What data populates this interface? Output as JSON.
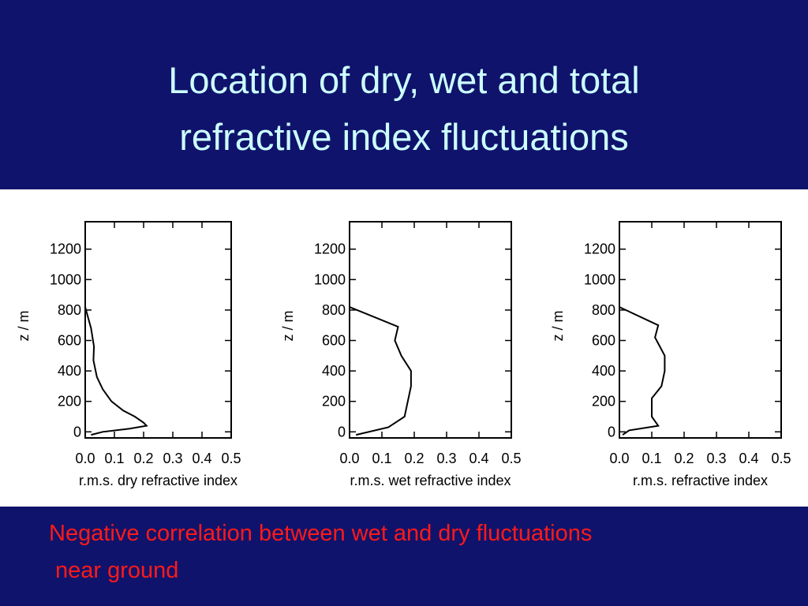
{
  "slide": {
    "title": [
      "Location of dry, wet and total",
      "refractive index fluctuations"
    ],
    "caption": [
      "Negative correlation between wet and dry fluctuations",
      "near ground"
    ]
  },
  "chart_data": [
    {
      "type": "line",
      "x_label": "r.m.s. dry refractive index",
      "y_label": "z / m",
      "color": "#000000",
      "x": [
        0,
        0.02,
        0.03,
        0.028,
        0.04,
        0.06,
        0.09,
        0.13,
        0.17,
        0.2,
        0.21,
        0.15,
        0.06,
        0.02
      ],
      "values": [
        820,
        680,
        560,
        470,
        360,
        280,
        200,
        140,
        100,
        60,
        40,
        20,
        0,
        -20
      ],
      "xlim": [
        0,
        0.5
      ],
      "ylim": [
        -40,
        1380
      ],
      "xticks": [
        {
          "value": 0,
          "label": "0.0"
        },
        0.1,
        0.2,
        0.3,
        0.4,
        0.5
      ],
      "yticks": [
        0,
        200,
        400,
        600,
        800,
        1000,
        1200
      ]
    },
    {
      "type": "line",
      "x_label": "r.m.s. wet refractive index",
      "y_label": "z / m",
      "color": "#000000",
      "x": [
        0,
        0.15,
        0.14,
        0.16,
        0.19,
        0.19,
        0.18,
        0.17,
        0.12,
        0.02
      ],
      "values": [
        820,
        690,
        600,
        500,
        400,
        300,
        200,
        100,
        30,
        -20
      ],
      "xlim": [
        0,
        0.5
      ],
      "ylim": [
        -40,
        1380
      ],
      "xticks": [
        {
          "value": 0,
          "label": "0.0"
        },
        0.1,
        0.2,
        0.3,
        0.4,
        0.5
      ],
      "yticks": [
        0,
        200,
        400,
        600,
        800,
        1000,
        1200
      ]
    },
    {
      "type": "line",
      "x_label": "r.m.s. refractive index",
      "y_label": "z / m",
      "color": "#000000",
      "x": [
        0,
        0.12,
        0.11,
        0.14,
        0.14,
        0.13,
        0.1,
        0.1,
        0.12,
        0.03,
        0.01
      ],
      "values": [
        820,
        700,
        620,
        500,
        400,
        300,
        220,
        100,
        40,
        10,
        -20
      ],
      "xlim": [
        0,
        0.5
      ],
      "ylim": [
        -40,
        1380
      ],
      "xticks": [
        {
          "value": 0,
          "label": "0.0"
        },
        0.1,
        0.2,
        0.3,
        0.4,
        0.5
      ],
      "yticks": [
        0,
        200,
        400,
        600,
        800,
        1000,
        1200
      ]
    }
  ]
}
